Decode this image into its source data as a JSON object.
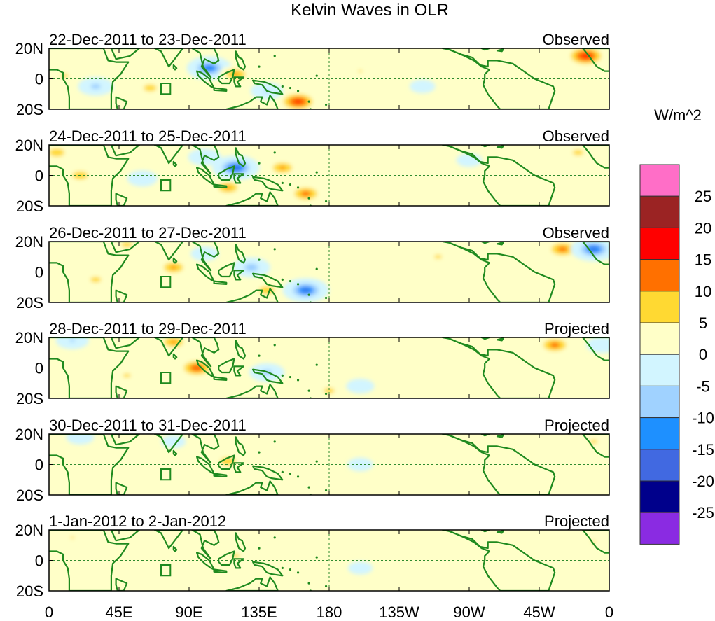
{
  "chart_data": {
    "type": "heatmap",
    "title": "Kelvin Waves in OLR",
    "units": "W/m^2",
    "x_ticks": [
      "0",
      "45E",
      "90E",
      "135E",
      "180",
      "135W",
      "90W",
      "45W",
      "0"
    ],
    "y_ticks": [
      "20N",
      "0",
      "20S"
    ],
    "xlim": [
      0,
      360
    ],
    "ylim": [
      -20,
      20
    ],
    "colorbar": {
      "labels": [
        "25",
        "20",
        "15",
        "10",
        "5",
        "0",
        "-5",
        "-10",
        "-15",
        "-20",
        "-25"
      ],
      "levels": [
        25,
        20,
        15,
        10,
        5,
        0,
        -5,
        -10,
        -15,
        -20,
        -25
      ],
      "colors": [
        "#ff6ec7",
        "#9b2323",
        "#ff0000",
        "#ff7000",
        "#ffd932",
        "#ffffc8",
        "#d2f5ff",
        "#a0d2ff",
        "#1e90ff",
        "#4169e1",
        "#00008b",
        "#8a2be2"
      ]
    },
    "panels": [
      {
        "date_range": "22-Dec-2011 to 23-Dec-2011",
        "status": "Observed",
        "anomalies": [
          {
            "lon": 103,
            "lat": 7,
            "value": -22
          },
          {
            "lon": 30,
            "lat": -5,
            "value": -14
          },
          {
            "lon": 160,
            "lat": -15,
            "value": 18
          },
          {
            "lon": 120,
            "lat": 3,
            "value": 12
          },
          {
            "lon": 345,
            "lat": 15,
            "value": 19
          },
          {
            "lon": 65,
            "lat": -6,
            "value": 9
          },
          {
            "lon": 140,
            "lat": -8,
            "value": -12
          },
          {
            "lon": 200,
            "lat": 5,
            "value": 6
          },
          {
            "lon": 240,
            "lat": -5,
            "value": -6
          },
          {
            "lon": 10,
            "lat": 2,
            "value": 7
          }
        ]
      },
      {
        "date_range": "24-Dec-2011 to 25-Dec-2011",
        "status": "Observed",
        "anomalies": [
          {
            "lon": 120,
            "lat": 5,
            "value": -24
          },
          {
            "lon": 100,
            "lat": 12,
            "value": -12
          },
          {
            "lon": 165,
            "lat": -12,
            "value": 14
          },
          {
            "lon": 20,
            "lat": 0,
            "value": 10
          },
          {
            "lon": 115,
            "lat": -8,
            "value": 12
          },
          {
            "lon": 340,
            "lat": 15,
            "value": 8
          },
          {
            "lon": 60,
            "lat": -2,
            "value": -10
          },
          {
            "lon": 150,
            "lat": 5,
            "value": 12
          },
          {
            "lon": 270,
            "lat": 10,
            "value": -6
          },
          {
            "lon": 5,
            "lat": 15,
            "value": 10
          }
        ]
      },
      {
        "date_range": "26-Dec-2011 to 27-Dec-2011",
        "status": "Observed",
        "anomalies": [
          {
            "lon": 165,
            "lat": -12,
            "value": -23
          },
          {
            "lon": 330,
            "lat": 15,
            "value": 14
          },
          {
            "lon": 350,
            "lat": 15,
            "value": -23
          },
          {
            "lon": 80,
            "lat": 3,
            "value": 12
          },
          {
            "lon": 130,
            "lat": 3,
            "value": -16
          },
          {
            "lon": 140,
            "lat": -12,
            "value": 10
          },
          {
            "lon": 30,
            "lat": -5,
            "value": 8
          },
          {
            "lon": 250,
            "lat": 10,
            "value": 7
          },
          {
            "lon": 100,
            "lat": 12,
            "value": -8
          },
          {
            "lon": 50,
            "lat": 18,
            "value": 8
          }
        ]
      },
      {
        "date_range": "28-Dec-2011 to 29-Dec-2011",
        "status": "Projected",
        "anomalies": [
          {
            "lon": 95,
            "lat": 0,
            "value": 16
          },
          {
            "lon": 140,
            "lat": -3,
            "value": -14
          },
          {
            "lon": 325,
            "lat": 15,
            "value": 14
          },
          {
            "lon": 15,
            "lat": 18,
            "value": -12
          },
          {
            "lon": 80,
            "lat": 17,
            "value": 12
          },
          {
            "lon": 180,
            "lat": -15,
            "value": 8
          },
          {
            "lon": 50,
            "lat": -5,
            "value": 7
          },
          {
            "lon": 200,
            "lat": -12,
            "value": -8
          },
          {
            "lon": 355,
            "lat": 15,
            "value": -10
          }
        ]
      },
      {
        "date_range": "30-Dec-2011 to 31-Dec-2011",
        "status": "Projected",
        "anomalies": [
          {
            "lon": 115,
            "lat": 2,
            "value": 10
          },
          {
            "lon": 20,
            "lat": 18,
            "value": -8
          },
          {
            "lon": 200,
            "lat": 0,
            "value": -6
          },
          {
            "lon": 60,
            "lat": -8,
            "value": 5
          },
          {
            "lon": 350,
            "lat": 15,
            "value": 7
          },
          {
            "lon": 150,
            "lat": -10,
            "value": 5
          },
          {
            "lon": 80,
            "lat": 15,
            "value": -5
          }
        ]
      },
      {
        "date_range": "1-Jan-2012 to 2-Jan-2012",
        "status": "Projected",
        "anomalies": [
          {
            "lon": 120,
            "lat": 3,
            "value": 7
          },
          {
            "lon": 15,
            "lat": 15,
            "value": 6
          },
          {
            "lon": 200,
            "lat": -5,
            "value": -5
          },
          {
            "lon": 350,
            "lat": 12,
            "value": 6
          },
          {
            "lon": 75,
            "lat": -5,
            "value": 5
          }
        ]
      }
    ]
  }
}
